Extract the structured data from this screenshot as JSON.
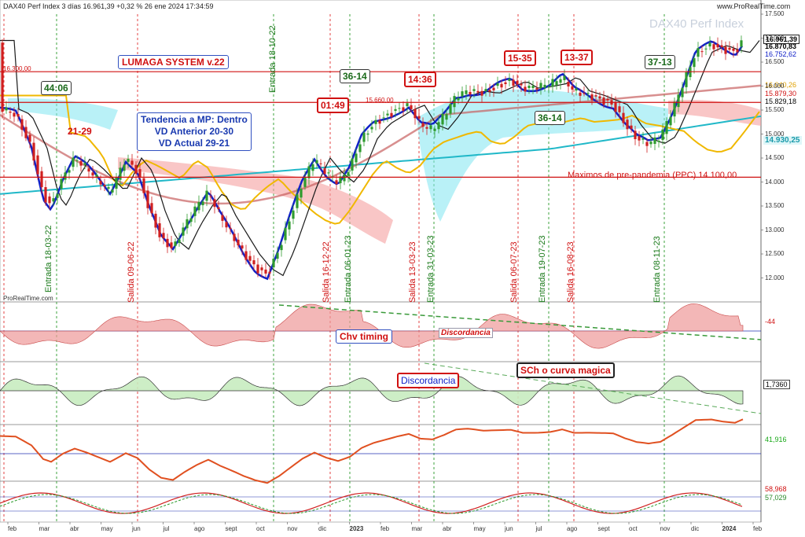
{
  "header": {
    "title": "DAX40 Perf Index 3 días 16.961,39 +0,32 % 26 ene 2024 17:34:59",
    "site": "www.ProRealTime.com",
    "watermark": "DAX40 Perf Index",
    "brand": "ProRealTime.com"
  },
  "annotations": {
    "system": "LUMAGA SYSTEM v.22",
    "trend_l1": "Tendencia a MP: Dentro",
    "trend_l2": "VD Anterior 20-30",
    "trend_l3": "VD Actual 29-21",
    "pre_pandemic": "Maximos de pre-pandemia (PPC) 14.100,00",
    "level_16300": "16.300,00",
    "level_15660": "15.660,00",
    "chv": "Chv timing",
    "discord1": "Discordancia",
    "discord2": "Discordancia",
    "sch": "SCh o curva magica",
    "b1": "44:06",
    "b2": "21-29",
    "b3": "01:49",
    "b4": "36-14",
    "b5": "14:36",
    "b6": "15-35",
    "b7": "13-37",
    "b8": "36-14",
    "b9": "37-13"
  },
  "signals": [
    "Entrada 18-03-22",
    "Salida 09-06-22",
    "Entrada 18-10-22",
    "Salida 16-12-22",
    "Entrada 06-01-23",
    "Salida 13-03-23",
    "Entrada 31-03-23",
    "Salida 06-07-23",
    "Entrada 19-07-23",
    "Salida 16-08-23",
    "Entrada 08-11-23"
  ],
  "price_labels": {
    "last": "16.961,39",
    "p2": "16.870,83",
    "p3": "16.752,62",
    "p4": "16.040,26",
    "p5": "15.879,30",
    "p6": "15.829,18",
    "p7": "14.930,25"
  },
  "panel_labels": {
    "chv": "-44",
    "sch": "1,7360",
    "p3": "41,916",
    "p4a": "58,968",
    "p4b": "57,029"
  },
  "colors": {
    "up": "#2e9b2e",
    "down": "#d02020",
    "blue": "#1020c8",
    "cyan": "#20b8c8",
    "orange": "#f0b800",
    "red_line": "#d01010"
  },
  "chart_data": {
    "type": "candlestick",
    "title": "DAX40 Perf Index",
    "ylim": [
      11500,
      17500
    ],
    "y_ticks": [
      "17.500",
      "17.000",
      "16.500",
      "16.000",
      "15.500",
      "15.000",
      "14.500",
      "14.000",
      "13.500",
      "13.000",
      "12.500",
      "12.000"
    ],
    "x_ticks": [
      "feb",
      "mar",
      "abr",
      "may",
      "jun",
      "jul",
      "ago",
      "sept",
      "oct",
      "nov",
      "dic",
      "2023",
      "feb",
      "mar",
      "abr",
      "may",
      "jun",
      "jul",
      "ago",
      "sept",
      "oct",
      "nov",
      "dic",
      "2024",
      "feb"
    ],
    "close_path": [
      [
        0,
        15550
      ],
      [
        20,
        15400
      ],
      [
        40,
        14700
      ],
      [
        55,
        13700
      ],
      [
        65,
        13500
      ],
      [
        80,
        14100
      ],
      [
        95,
        14500
      ],
      [
        110,
        14300
      ],
      [
        125,
        14050
      ],
      [
        140,
        13800
      ],
      [
        160,
        14500
      ],
      [
        175,
        14200
      ],
      [
        190,
        13400
      ],
      [
        205,
        12800
      ],
      [
        220,
        12600
      ],
      [
        235,
        13100
      ],
      [
        250,
        13500
      ],
      [
        265,
        13800
      ],
      [
        280,
        13300
      ],
      [
        295,
        12900
      ],
      [
        310,
        12500
      ],
      [
        325,
        12200
      ],
      [
        340,
        12050
      ],
      [
        355,
        12600
      ],
      [
        370,
        13300
      ],
      [
        385,
        14000
      ],
      [
        400,
        14500
      ],
      [
        415,
        14200
      ],
      [
        430,
        14000
      ],
      [
        445,
        14300
      ],
      [
        460,
        14900
      ],
      [
        475,
        15200
      ],
      [
        490,
        15350
      ],
      [
        505,
        15500
      ],
      [
        520,
        15600
      ],
      [
        535,
        15200
      ],
      [
        550,
        15100
      ],
      [
        565,
        15400
      ],
      [
        580,
        15800
      ],
      [
        595,
        15900
      ],
      [
        615,
        15850
      ],
      [
        635,
        16000
      ],
      [
        650,
        16100
      ],
      [
        665,
        15950
      ],
      [
        685,
        16000
      ],
      [
        700,
        16050
      ],
      [
        715,
        16200
      ],
      [
        730,
        15900
      ],
      [
        750,
        15800
      ],
      [
        765,
        15700
      ],
      [
        780,
        15600
      ],
      [
        795,
        15200
      ],
      [
        810,
        14900
      ],
      [
        825,
        14800
      ],
      [
        840,
        14950
      ],
      [
        855,
        15500
      ],
      [
        870,
        16100
      ],
      [
        885,
        16700
      ],
      [
        905,
        16850
      ],
      [
        920,
        16750
      ],
      [
        935,
        16700
      ],
      [
        945,
        16950
      ]
    ],
    "horizontal_levels": [
      16300,
      15660,
      14100
    ]
  }
}
